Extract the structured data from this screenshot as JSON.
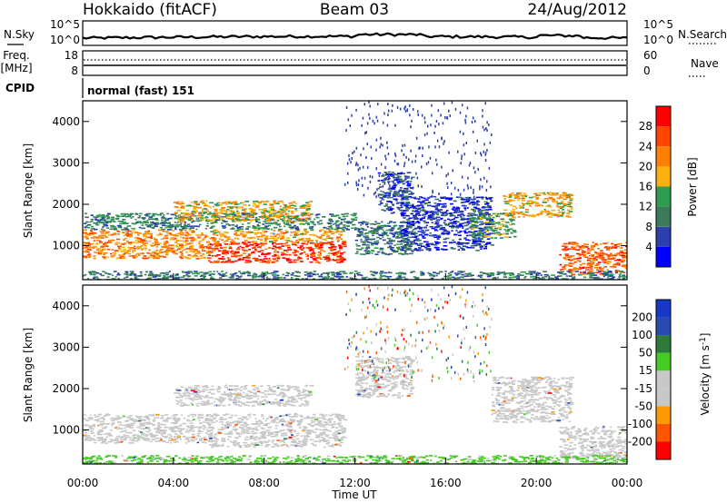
{
  "header": {
    "title": "Hokkaido (fitACF)",
    "beam": "Beam 03",
    "date": "24/Aug/2012"
  },
  "noise_panel": {
    "left_label": "N.Sky",
    "right_label": "N.Search",
    "left_ticks": [
      "10^5",
      "10^0"
    ],
    "right_ticks": [
      "10^5",
      "10^0"
    ]
  },
  "freq_panel": {
    "left_label_line1": "Freq.",
    "left_label_line2": "[MHz]",
    "left_ticks": [
      "18",
      "8"
    ],
    "right_label": "Nave",
    "right_ticks": [
      "60",
      "0"
    ]
  },
  "cpid_panel": {
    "label": "CPID",
    "value": "normal (fast) 151"
  },
  "x_axis": {
    "label": "Time UT",
    "ticks": [
      "00:00",
      "04:00",
      "08:00",
      "12:00",
      "16:00",
      "20:00",
      "00:00"
    ]
  },
  "colors": {
    "power": [
      "#0000ff",
      "#2c3fae",
      "#3a7a5a",
      "#2f9d4f",
      "#fbb010",
      "#ff7f00",
      "#ff4500",
      "#ff0000"
    ],
    "velocity": [
      "#ff0000",
      "#ff5500",
      "#ff9900",
      "#c8c8c8",
      "#c8c8c8",
      "#44cc22",
      "#2e7a3a",
      "#2a4ab0",
      "#1838c8"
    ],
    "velocity_gray": "#c8c8c8"
  },
  "chart_data": [
    {
      "type": "heatmap",
      "name": "power",
      "xlabel": "Time UT",
      "ylabel": "Slant Range [km]",
      "xlim": [
        0,
        24
      ],
      "ylim": [
        180,
        4500
      ],
      "yticks": [
        "1000",
        "2000",
        "3000",
        "4000"
      ],
      "colorbar": {
        "label": "Power [dB]",
        "ticks": [
          "4",
          "8",
          "12",
          "16",
          "20",
          "24",
          "28"
        ],
        "range": [
          0,
          32
        ]
      },
      "regions": [
        {
          "t": [
            0.0,
            5.5
          ],
          "r": [
            700,
            1400
          ],
          "level": 22
        },
        {
          "t": [
            5.5,
            11.5
          ],
          "r": [
            600,
            1100
          ],
          "level": 27
        },
        {
          "t": [
            5.5,
            11.5
          ],
          "r": [
            1100,
            1400
          ],
          "level": 20
        },
        {
          "t": [
            0.0,
            12.0
          ],
          "r": [
            1400,
            1800
          ],
          "level": 11
        },
        {
          "t": [
            4.0,
            10.0
          ],
          "r": [
            1600,
            2100
          ],
          "level": 18
        },
        {
          "t": [
            12.0,
            14.5
          ],
          "r": [
            800,
            1600
          ],
          "level": 9
        },
        {
          "t": [
            13.0,
            14.5
          ],
          "r": [
            1800,
            2800
          ],
          "level": 6
        },
        {
          "t": [
            14.0,
            18.0
          ],
          "r": [
            900,
            2200
          ],
          "level": 5
        },
        {
          "t": [
            17.0,
            19.0
          ],
          "r": [
            1200,
            1800
          ],
          "level": 13
        },
        {
          "t": [
            18.5,
            21.5
          ],
          "r": [
            1700,
            2300
          ],
          "level": 19
        },
        {
          "t": [
            21.0,
            24.0
          ],
          "r": [
            300,
            1100
          ],
          "level": 25
        },
        {
          "t": [
            0.0,
            24.0
          ],
          "r": [
            180,
            400
          ],
          "level": 10
        }
      ]
    },
    {
      "type": "heatmap",
      "name": "velocity",
      "xlabel": "Time UT",
      "ylabel": "Slant Range [km]",
      "xlim": [
        0,
        24
      ],
      "ylim": [
        180,
        4500
      ],
      "yticks": [
        "1000",
        "2000",
        "3000",
        "4000"
      ],
      "colorbar": {
        "label": "Velocity [m s^-1]",
        "ticks": [
          "200",
          "100",
          "50",
          "15",
          "-15",
          "-50",
          "-100",
          "-200"
        ],
        "range": [
          -250,
          250
        ]
      },
      "regions": [
        {
          "t": [
            0.0,
            5.5
          ],
          "r": [
            700,
            1400
          ],
          "velocity": 0
        },
        {
          "t": [
            5.5,
            11.5
          ],
          "r": [
            600,
            1400
          ],
          "velocity": 0
        },
        {
          "t": [
            4.0,
            10.0
          ],
          "r": [
            1600,
            2100
          ],
          "velocity": 0
        },
        {
          "t": [
            12.0,
            14.5
          ],
          "r": [
            1800,
            2800
          ],
          "velocity": -30
        },
        {
          "t": [
            18.0,
            21.5
          ],
          "r": [
            1200,
            2300
          ],
          "velocity": 0
        },
        {
          "t": [
            21.0,
            24.0
          ],
          "r": [
            300,
            1100
          ],
          "velocity": 0
        },
        {
          "t": [
            0.0,
            24.0
          ],
          "r": [
            180,
            400
          ],
          "velocity": 40
        }
      ]
    }
  ]
}
